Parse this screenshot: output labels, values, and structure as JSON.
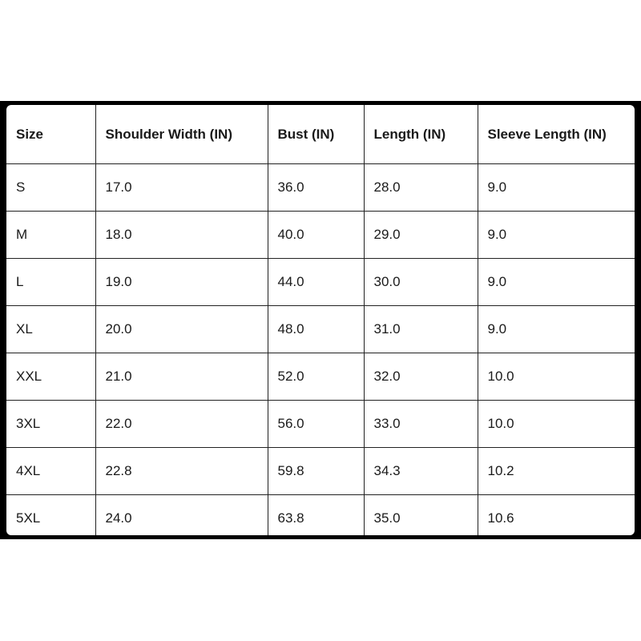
{
  "table": {
    "headers": [
      "Size",
      "Shoulder Width (IN)",
      "Bust (IN)",
      "Length (IN)",
      "Sleeve Length (IN)"
    ],
    "rows": [
      [
        "S",
        "17.0",
        "36.0",
        "28.0",
        "9.0"
      ],
      [
        "M",
        "18.0",
        "40.0",
        "29.0",
        "9.0"
      ],
      [
        "L",
        "19.0",
        "44.0",
        "30.0",
        "9.0"
      ],
      [
        "XL",
        "20.0",
        "48.0",
        "31.0",
        "9.0"
      ],
      [
        "XXL",
        "21.0",
        "52.0",
        "32.0",
        "10.0"
      ],
      [
        "3XL",
        "22.0",
        "56.0",
        "33.0",
        "10.0"
      ],
      [
        "4XL",
        "22.8",
        "59.8",
        "34.3",
        "10.2"
      ],
      [
        "5XL",
        "24.0",
        "63.8",
        "35.0",
        "10.6"
      ]
    ]
  }
}
